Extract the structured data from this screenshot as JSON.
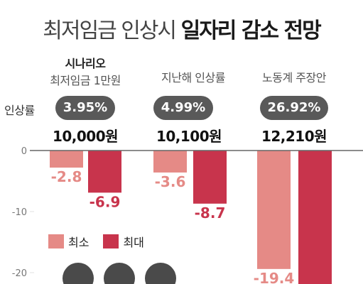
{
  "title": {
    "light": "최저임금 인상시",
    "bold": "일자리 감소 전망"
  },
  "rate_label": "인상률",
  "legend": {
    "min_label": "최소",
    "max_label": "최대"
  },
  "colors": {
    "min": "#e58a86",
    "max": "#c8344c",
    "pill": "#595959",
    "axis": "#999999",
    "grid": "#e0e0e0"
  },
  "scenarios": [
    {
      "tag": "시나리오",
      "name": "최저임금 1만원",
      "rate": "3.95%",
      "wage": "10,000원"
    },
    {
      "tag": "",
      "name": "지난해 인상률",
      "rate": "4.99%",
      "wage": "10,100원"
    },
    {
      "tag": "",
      "name": "노동계 주장안",
      "rate": "26.92%",
      "wage": "12,210원"
    }
  ],
  "chart_data": {
    "type": "bar",
    "categories": [
      "최저임금 1만원",
      "지난해 인상률",
      "노동계 주장안"
    ],
    "series": [
      {
        "name": "최소",
        "values": [
          -2.8,
          -3.6,
          -19.4
        ]
      },
      {
        "name": "최대",
        "values": [
          -6.9,
          -8.7,
          null
        ]
      }
    ],
    "value_labels": {
      "최소": [
        "-2.8",
        "-3.6",
        "-19.4"
      ],
      "최대": [
        "-6.9",
        "-8.7",
        ""
      ]
    },
    "y_ticks": [
      0,
      -10,
      -20
    ],
    "y_tick_labels": [
      "0",
      "-10",
      "-20"
    ],
    "legend_position": "left-middle",
    "grid": false
  }
}
